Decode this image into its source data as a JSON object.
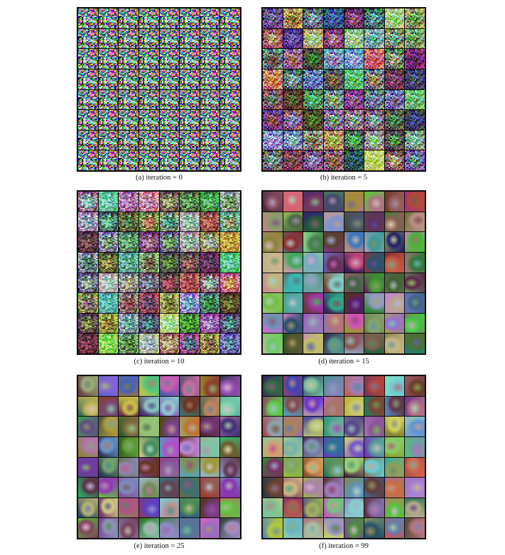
{
  "panels": [
    {
      "caption": "(a) iteration = 0",
      "stage": 0
    },
    {
      "caption": "(b) iteration = 5",
      "stage": 1
    },
    {
      "caption": "(c) iteration = 10",
      "stage": 2
    },
    {
      "caption": "(d) iteration = 15",
      "stage": 3
    },
    {
      "caption": "(e) iteration = 25",
      "stage": 4
    },
    {
      "caption": "(f) iteration = 99",
      "stage": 5
    }
  ]
}
